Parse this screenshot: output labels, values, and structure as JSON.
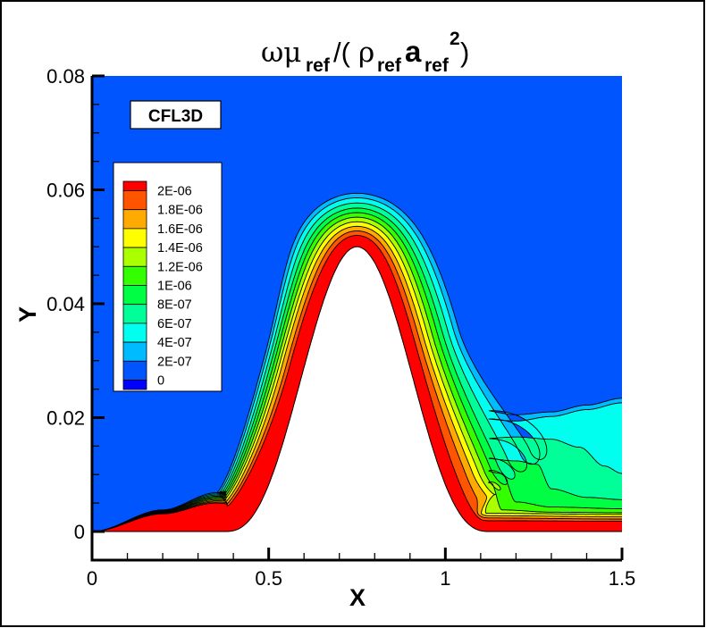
{
  "chart_data": {
    "type": "contour",
    "title_parts": {
      "omega_mu": "ωμ",
      "sub1": "ref",
      "slash_paren": "/(",
      "rho": "ρ",
      "sub2": "ref",
      "a": "a",
      "sub3": "ref",
      "sup": "2",
      "close": ")"
    },
    "xlabel": "X",
    "ylabel": "Y",
    "xlim": [
      0,
      1.5
    ],
    "ylim": [
      -0.005,
      0.08
    ],
    "x_ticks": [
      0,
      0.5,
      1,
      1.5
    ],
    "x_tick_labels": [
      "0",
      "0.5",
      "1",
      "1.5"
    ],
    "y_ticks": [
      0,
      0.02,
      0.04,
      0.06,
      0.08
    ],
    "y_tick_labels": [
      "0",
      "0.02",
      "0.04",
      "0.06",
      "0.08"
    ],
    "x_minor_step": 0.1,
    "y_minor_step": 0.005,
    "grid": false,
    "legend_placement": "upper-left",
    "annotation": "CFL3D",
    "legend": {
      "levels": [
        "2E-06",
        "1.8E-06",
        "1.6E-06",
        "1.4E-06",
        "1.2E-06",
        "1E-06",
        "8E-07",
        "6E-07",
        "4E-07",
        "2E-07",
        "0"
      ],
      "level_values": [
        2e-06,
        1.8e-06,
        1.6e-06,
        1.4e-06,
        1.2e-06,
        1e-06,
        8e-07,
        6e-07,
        4e-07,
        2e-07,
        0
      ],
      "colors": [
        "#ff0000",
        "#ff5500",
        "#ffaa00",
        "#ffff00",
        "#aaff00",
        "#33ff00",
        "#00ff44",
        "#00ff99",
        "#00ffee",
        "#00bbff",
        "#0055ff",
        "#0000ff"
      ]
    },
    "field_description_values": {
      "freestream_band": "0 to 2E-07",
      "max_band": "above 2E-06 near wall"
    },
    "geometry": {
      "bump_peak_x": 0.75,
      "bump_peak_y": 0.05,
      "bump_start_x": 0.375,
      "bump_end_x": 1.125
    }
  }
}
